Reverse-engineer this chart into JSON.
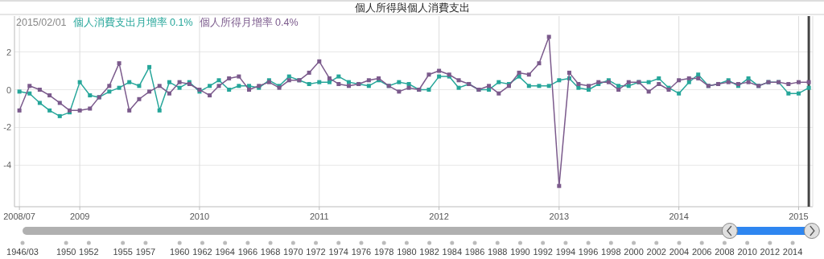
{
  "chart_data": {
    "type": "line",
    "title": "個人所得與個人消費支出",
    "annotations": [
      "2015/02/01",
      "0.1%",
      "0.4%"
    ],
    "x": [
      "2008-07",
      "2008-08",
      "2008-09",
      "2008-10",
      "2008-11",
      "2008-12",
      "2009-01",
      "2009-02",
      "2009-03",
      "2009-04",
      "2009-05",
      "2009-06",
      "2009-07",
      "2009-08",
      "2009-09",
      "2009-10",
      "2009-11",
      "2009-12",
      "2010-01",
      "2010-02",
      "2010-03",
      "2010-04",
      "2010-05",
      "2010-06",
      "2010-07",
      "2010-08",
      "2010-09",
      "2010-10",
      "2010-11",
      "2010-12",
      "2011-01",
      "2011-02",
      "2011-03",
      "2011-04",
      "2011-05",
      "2011-06",
      "2011-07",
      "2011-08",
      "2011-09",
      "2011-10",
      "2011-11",
      "2011-12",
      "2012-01",
      "2012-02",
      "2012-03",
      "2012-04",
      "2012-05",
      "2012-06",
      "2012-07",
      "2012-08",
      "2012-09",
      "2012-10",
      "2012-11",
      "2012-12",
      "2013-01",
      "2013-02",
      "2013-03",
      "2013-04",
      "2013-05",
      "2013-06",
      "2013-07",
      "2013-08",
      "2013-09",
      "2013-10",
      "2013-11",
      "2013-12",
      "2014-01",
      "2014-02",
      "2014-03",
      "2014-04",
      "2014-05",
      "2014-06",
      "2014-07",
      "2014-08",
      "2014-09",
      "2014-10",
      "2014-11",
      "2014-12",
      "2015-01",
      "2015-02"
    ],
    "series": [
      {
        "name": "個人消費支出月增率",
        "color": "#26a69a",
        "values": [
          -0.1,
          -0.2,
          -0.7,
          -1.1,
          -1.4,
          -1.2,
          0.4,
          -0.3,
          -0.4,
          -0.1,
          0.1,
          0.4,
          0.2,
          1.2,
          -1.1,
          0.4,
          0.1,
          0.4,
          -0.1,
          0.2,
          0.5,
          0,
          0.2,
          0.2,
          0.1,
          0.5,
          0.2,
          0.7,
          0.5,
          0.3,
          0.4,
          0.4,
          0.7,
          0.4,
          0.3,
          0.2,
          0.5,
          0.2,
          0.4,
          0.3,
          0,
          0,
          0.7,
          0.7,
          0.1,
          0.3,
          0,
          0,
          0.4,
          0.3,
          0.7,
          0.2,
          0.2,
          0.2,
          0.5,
          0.6,
          0.1,
          0,
          0.3,
          0.5,
          0.2,
          0.2,
          0.4,
          0.4,
          0.6,
          0.1,
          -0.2,
          0.4,
          0.8,
          0.2,
          0.3,
          0.5,
          0.2,
          0.6,
          0.2,
          0.4,
          0.4,
          -0.2,
          -0.2,
          0.1
        ]
      },
      {
        "name": "個人所得月增率",
        "color": "#7b5a8c",
        "values": [
          -1.1,
          0.2,
          0,
          -0.3,
          -0.7,
          -1.1,
          -1.1,
          -1.0,
          -0.4,
          0.2,
          1.4,
          -1.1,
          -0.5,
          -0.1,
          0.2,
          -0.2,
          0.4,
          0.3,
          0,
          -0.3,
          0.2,
          0.6,
          0.7,
          0,
          0.2,
          0.4,
          0.1,
          0.5,
          0.5,
          0.9,
          1.5,
          0.6,
          0.3,
          0.2,
          0.3,
          0.5,
          0.6,
          0.2,
          -0.1,
          0.1,
          0,
          0.8,
          1.0,
          0.8,
          0.5,
          0.3,
          0,
          0.2,
          -0.2,
          0.2,
          0.9,
          0.8,
          1.4,
          2.8,
          -5.1,
          0.9,
          0.3,
          0.2,
          0.4,
          0.4,
          0,
          0.4,
          0.4,
          -0.1,
          0.3,
          0,
          0.5,
          0.6,
          0.6,
          0.2,
          0.3,
          0.4,
          0.3,
          0.4,
          0.2,
          0.4,
          0.4,
          0.3,
          0.4,
          0.4
        ]
      }
    ],
    "xlim": [
      "2008-06-16",
      "2015-02-13"
    ],
    "xticks": [
      {
        "value": "2008-07",
        "label": "2008/07"
      },
      "2009",
      "2010",
      "2011",
      "2012",
      "2013",
      "2014",
      "2015"
    ],
    "ylim": [
      -6.2,
      3.9
    ],
    "yticks": [
      -4,
      -2,
      0,
      2
    ],
    "x2lim": [
      "1946-03",
      "2015-06"
    ],
    "x2ticks": [
      {
        "value": "1946-03",
        "label": "1946/03"
      },
      "1950",
      "1952",
      "1955",
      "1957",
      "1960",
      "1962",
      "1964",
      "1966",
      "1968",
      "1970",
      "1972",
      "1974",
      "1976",
      "1978",
      "1980",
      "1982",
      "1984",
      "1986",
      "1988",
      "1990",
      "1992",
      "1994",
      "1996",
      "1998",
      "2000",
      "2002",
      "2004",
      "2006",
      "2008",
      "2010",
      "2012",
      "2014"
    ],
    "ref_lines": [
      {
        "axis": "x",
        "value": "2015-02",
        "color": "#444444"
      }
    ],
    "grid": true,
    "legend": "top left",
    "marker": "square",
    "line_style": "solid"
  }
}
